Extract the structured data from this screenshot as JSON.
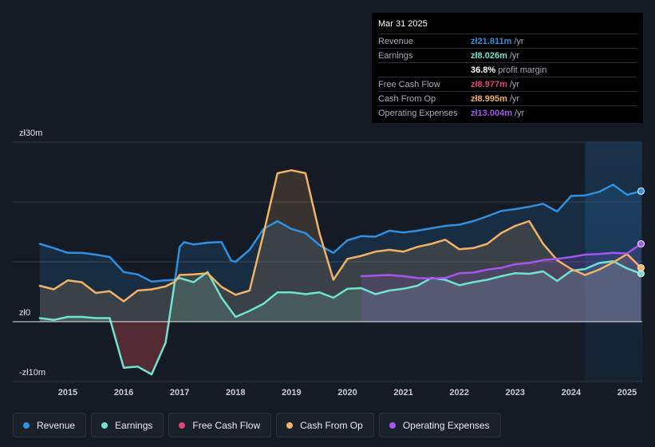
{
  "tooltip": {
    "date": "Mar 31 2025",
    "rows": [
      {
        "label": "Revenue",
        "value": "zł21.811m",
        "unit": "/yr",
        "color": "#2f8fe0"
      },
      {
        "label": "Earnings",
        "value": "zł8.026m",
        "unit": "/yr",
        "color": "#6fe3d0"
      },
      {
        "label": "",
        "value": "36.8%",
        "unit": "profit margin",
        "color": "#ffffff"
      },
      {
        "label": "Free Cash Flow",
        "value": "zł8.977m",
        "unit": "/yr",
        "color": "#e0457b"
      },
      {
        "label": "Cash From Op",
        "value": "zł8.995m",
        "unit": "/yr",
        "color": "#f2b266"
      },
      {
        "label": "Operating Expenses",
        "value": "zł13.004m",
        "unit": "/yr",
        "color": "#a555f0"
      }
    ]
  },
  "legend": [
    {
      "label": "Revenue",
      "color": "#2f8fe0"
    },
    {
      "label": "Earnings",
      "color": "#6fe3d0"
    },
    {
      "label": "Free Cash Flow",
      "color": "#e0457b"
    },
    {
      "label": "Cash From Op",
      "color": "#f2b266"
    },
    {
      "label": "Operating Expenses",
      "color": "#a555f0"
    }
  ],
  "chart_data": {
    "type": "line",
    "ylim": [
      -10,
      30
    ],
    "y_tick_labels": [
      {
        "value": 30,
        "label": "zł30m"
      },
      {
        "value": 0,
        "label": "zł0"
      },
      {
        "value": -10,
        "label": "-zł10m"
      }
    ],
    "x_tick_labels": [
      "2015",
      "2016",
      "2017",
      "2018",
      "2019",
      "2020",
      "2021",
      "2022",
      "2023",
      "2024",
      "2025"
    ],
    "x_ticks": [
      2015,
      2016,
      2017,
      2018,
      2019,
      2020,
      2021,
      2022,
      2023,
      2024,
      2025
    ],
    "xlim": [
      2014.48,
      2025.25
    ],
    "highlight_from": 2024.25,
    "grid": true,
    "series": [
      {
        "name": "Revenue",
        "color": "#2f8fe0",
        "points": [
          [
            2014.5,
            13
          ],
          [
            2014.75,
            12.3
          ],
          [
            2015.0,
            11.5
          ],
          [
            2015.25,
            11.5
          ],
          [
            2015.5,
            11.2
          ],
          [
            2015.75,
            10.8
          ],
          [
            2016.0,
            8.3
          ],
          [
            2016.25,
            7.9
          ],
          [
            2016.5,
            6.7
          ],
          [
            2016.75,
            6.9
          ],
          [
            2016.92,
            7.0
          ],
          [
            2017.0,
            12.5
          ],
          [
            2017.08,
            13.3
          ],
          [
            2017.25,
            12.9
          ],
          [
            2017.5,
            13.2
          ],
          [
            2017.75,
            13.3
          ],
          [
            2017.92,
            10.2
          ],
          [
            2018.0,
            10.0
          ],
          [
            2018.25,
            12.0
          ],
          [
            2018.5,
            15.5
          ],
          [
            2018.75,
            16.8
          ],
          [
            2019.0,
            15.5
          ],
          [
            2019.25,
            14.8
          ],
          [
            2019.5,
            12.8
          ],
          [
            2019.75,
            11.5
          ],
          [
            2020.0,
            13.6
          ],
          [
            2020.25,
            14.3
          ],
          [
            2020.5,
            14.2
          ],
          [
            2020.75,
            15.2
          ],
          [
            2021.0,
            14.9
          ],
          [
            2021.25,
            15.2
          ],
          [
            2021.5,
            15.6
          ],
          [
            2021.75,
            16.0
          ],
          [
            2022.0,
            16.2
          ],
          [
            2022.25,
            16.8
          ],
          [
            2022.5,
            17.6
          ],
          [
            2022.75,
            18.5
          ],
          [
            2023.0,
            18.8
          ],
          [
            2023.25,
            19.2
          ],
          [
            2023.5,
            19.7
          ],
          [
            2023.75,
            18.4
          ],
          [
            2024.0,
            21.0
          ],
          [
            2024.25,
            21.1
          ],
          [
            2024.5,
            21.7
          ],
          [
            2024.75,
            22.9
          ],
          [
            2025.0,
            21.2
          ],
          [
            2025.25,
            21.81
          ]
        ]
      },
      {
        "name": "Earnings",
        "color": "#6fe3d0",
        "points": [
          [
            2014.5,
            0.6
          ],
          [
            2014.75,
            0.3
          ],
          [
            2015.0,
            0.8
          ],
          [
            2015.25,
            0.8
          ],
          [
            2015.5,
            0.6
          ],
          [
            2015.75,
            0.6
          ],
          [
            2016.0,
            -7.7
          ],
          [
            2016.25,
            -7.5
          ],
          [
            2016.5,
            -8.8
          ],
          [
            2016.75,
            -3.5
          ],
          [
            2016.92,
            7.0
          ],
          [
            2017.0,
            7.3
          ],
          [
            2017.25,
            6.6
          ],
          [
            2017.5,
            8.3
          ],
          [
            2017.75,
            4.0
          ],
          [
            2018.0,
            0.8
          ],
          [
            2018.25,
            1.8
          ],
          [
            2018.5,
            3.0
          ],
          [
            2018.75,
            4.9
          ],
          [
            2019.0,
            4.9
          ],
          [
            2019.25,
            4.6
          ],
          [
            2019.5,
            4.9
          ],
          [
            2019.75,
            4.0
          ],
          [
            2020.0,
            5.5
          ],
          [
            2020.25,
            5.6
          ],
          [
            2020.5,
            4.6
          ],
          [
            2020.75,
            5.2
          ],
          [
            2021.0,
            5.5
          ],
          [
            2021.25,
            6.0
          ],
          [
            2021.5,
            7.3
          ],
          [
            2021.75,
            7.0
          ],
          [
            2022.0,
            6.1
          ],
          [
            2022.25,
            6.6
          ],
          [
            2022.5,
            7.0
          ],
          [
            2022.75,
            7.6
          ],
          [
            2023.0,
            8.1
          ],
          [
            2023.25,
            8.0
          ],
          [
            2023.5,
            8.4
          ],
          [
            2023.75,
            6.8
          ],
          [
            2024.0,
            8.5
          ],
          [
            2024.25,
            8.8
          ],
          [
            2024.5,
            9.8
          ],
          [
            2024.75,
            10.1
          ],
          [
            2025.0,
            8.9
          ],
          [
            2025.25,
            8.03
          ]
        ]
      },
      {
        "name": "Cash From Op",
        "color": "#f2b266",
        "points": [
          [
            2014.5,
            6.0
          ],
          [
            2014.75,
            5.4
          ],
          [
            2015.0,
            6.9
          ],
          [
            2015.25,
            6.6
          ],
          [
            2015.5,
            4.8
          ],
          [
            2015.75,
            5.1
          ],
          [
            2016.0,
            3.4
          ],
          [
            2016.25,
            5.2
          ],
          [
            2016.5,
            5.4
          ],
          [
            2016.75,
            5.9
          ],
          [
            2016.92,
            6.7
          ],
          [
            2017.0,
            7.8
          ],
          [
            2017.25,
            7.9
          ],
          [
            2017.5,
            8.1
          ],
          [
            2017.75,
            5.8
          ],
          [
            2018.0,
            4.5
          ],
          [
            2018.25,
            5.2
          ],
          [
            2018.5,
            14.7
          ],
          [
            2018.75,
            24.8
          ],
          [
            2019.0,
            25.3
          ],
          [
            2019.25,
            24.8
          ],
          [
            2019.5,
            14.8
          ],
          [
            2019.75,
            7.0
          ],
          [
            2020.0,
            10.5
          ],
          [
            2020.25,
            11.0
          ],
          [
            2020.5,
            11.7
          ],
          [
            2020.75,
            12.0
          ],
          [
            2021.0,
            11.7
          ],
          [
            2021.25,
            12.5
          ],
          [
            2021.5,
            13.0
          ],
          [
            2021.75,
            13.7
          ],
          [
            2022.0,
            12.1
          ],
          [
            2022.25,
            12.3
          ],
          [
            2022.5,
            13.0
          ],
          [
            2022.75,
            14.8
          ],
          [
            2023.0,
            16.0
          ],
          [
            2023.25,
            16.8
          ],
          [
            2023.5,
            13.0
          ],
          [
            2023.75,
            10.3
          ],
          [
            2024.0,
            8.8
          ],
          [
            2024.25,
            7.8
          ],
          [
            2024.5,
            8.7
          ],
          [
            2024.75,
            9.9
          ],
          [
            2025.0,
            11.3
          ],
          [
            2025.25,
            9.0
          ]
        ]
      },
      {
        "name": "Operating Expenses",
        "color": "#a555f0",
        "points": [
          [
            2020.25,
            7.6
          ],
          [
            2020.5,
            7.7
          ],
          [
            2020.75,
            7.8
          ],
          [
            2021.0,
            7.6
          ],
          [
            2021.25,
            7.3
          ],
          [
            2021.5,
            7.2
          ],
          [
            2021.75,
            7.3
          ],
          [
            2022.0,
            8.1
          ],
          [
            2022.25,
            8.2
          ],
          [
            2022.5,
            8.7
          ],
          [
            2022.75,
            9.0
          ],
          [
            2023.0,
            9.6
          ],
          [
            2023.25,
            9.8
          ],
          [
            2023.5,
            10.3
          ],
          [
            2023.75,
            10.5
          ],
          [
            2024.0,
            10.8
          ],
          [
            2024.25,
            11.2
          ],
          [
            2024.5,
            11.3
          ],
          [
            2024.75,
            11.5
          ],
          [
            2025.0,
            11.4
          ],
          [
            2025.25,
            13.0
          ]
        ]
      }
    ]
  }
}
